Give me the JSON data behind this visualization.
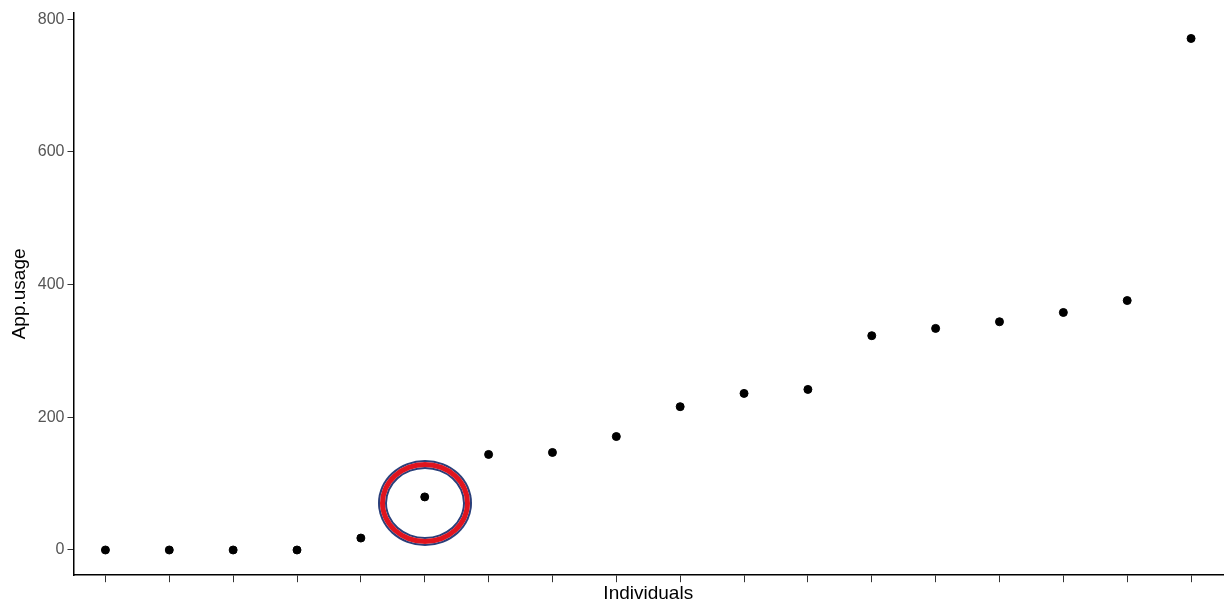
{
  "chart_data": {
    "type": "scatter",
    "xlabel": "Individuals",
    "ylabel": "App.usage",
    "categories": [
      null,
      null,
      null,
      null,
      null,
      null,
      null,
      null,
      null,
      null,
      null,
      null,
      null,
      null,
      null,
      null,
      null,
      null
    ],
    "values": [
      0,
      0,
      0,
      0,
      18,
      80,
      144,
      147,
      171,
      216,
      236,
      242,
      323,
      334,
      344,
      358,
      376,
      771
    ],
    "color": "#000000",
    "marker": "circle",
    "ylim": [
      -38,
      810
    ],
    "yticks": [
      0,
      200,
      400,
      600,
      800
    ],
    "grid": false,
    "legend": false,
    "tick_labels": "y"
  }
}
